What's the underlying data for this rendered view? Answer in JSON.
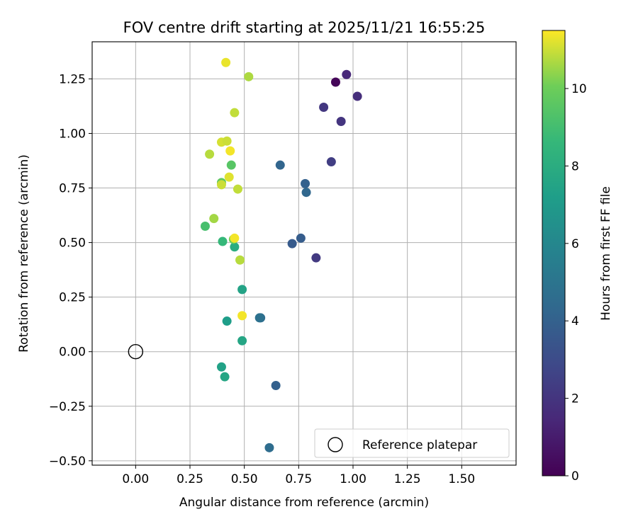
{
  "chart_data": {
    "type": "scatter",
    "title": "FOV centre drift starting at 2025/11/21 16:55:25",
    "xlabel": "Angular distance from reference (arcmin)",
    "ylabel": "Rotation from reference (arcmin)",
    "xlim": [
      -0.2,
      1.75
    ],
    "ylim": [
      -0.52,
      1.42
    ],
    "xticks": [
      0.0,
      0.25,
      0.5,
      0.75,
      1.0,
      1.25,
      1.5
    ],
    "xtick_labels": [
      "0.00",
      "0.25",
      "0.50",
      "0.75",
      "1.00",
      "1.25",
      "1.50"
    ],
    "yticks": [
      -0.5,
      -0.25,
      0.0,
      0.25,
      0.5,
      0.75,
      1.0,
      1.25
    ],
    "ytick_labels": [
      "−0.50",
      "−0.25",
      "0.00",
      "0.25",
      "0.50",
      "0.75",
      "1.00",
      "1.25"
    ],
    "grid": true,
    "colorbar": {
      "label": "Hours from first FF file",
      "min": 0,
      "max": 11.5,
      "ticks": [
        0,
        2,
        4,
        6,
        8,
        10
      ],
      "tick_labels": [
        "0",
        "2",
        "4",
        "6",
        "8",
        "10"
      ],
      "colormap": "viridis"
    },
    "reference": {
      "x": 0.0,
      "y": 0.0,
      "label": "Reference platepar"
    },
    "legend_position": "lower-right",
    "points": [
      {
        "x": 0.92,
        "y": 1.235,
        "hours": 0.2
      },
      {
        "x": 0.97,
        "y": 1.27,
        "hours": 1.5
      },
      {
        "x": 1.02,
        "y": 1.17,
        "hours": 1.7
      },
      {
        "x": 0.865,
        "y": 1.12,
        "hours": 2.1
      },
      {
        "x": 0.945,
        "y": 1.055,
        "hours": 2.0
      },
      {
        "x": 0.9,
        "y": 0.87,
        "hours": 2.4
      },
      {
        "x": 0.83,
        "y": 0.43,
        "hours": 2.2
      },
      {
        "x": 0.665,
        "y": 0.855,
        "hours": 4.2
      },
      {
        "x": 0.78,
        "y": 0.77,
        "hours": 4.0
      },
      {
        "x": 0.785,
        "y": 0.73,
        "hours": 4.3
      },
      {
        "x": 0.76,
        "y": 0.52,
        "hours": 3.8
      },
      {
        "x": 0.72,
        "y": 0.495,
        "hours": 3.7
      },
      {
        "x": 0.575,
        "y": 0.155,
        "hours": 4.6
      },
      {
        "x": 0.57,
        "y": 0.155,
        "hours": 4.8
      },
      {
        "x": 0.645,
        "y": -0.155,
        "hours": 4.0
      },
      {
        "x": 0.615,
        "y": -0.44,
        "hours": 4.6
      },
      {
        "x": 0.49,
        "y": 0.285,
        "hours": 7.5
      },
      {
        "x": 0.42,
        "y": 0.14,
        "hours": 7.2
      },
      {
        "x": 0.49,
        "y": 0.05,
        "hours": 7.6
      },
      {
        "x": 0.395,
        "y": -0.07,
        "hours": 7.4
      },
      {
        "x": 0.41,
        "y": -0.115,
        "hours": 7.6
      },
      {
        "x": 0.455,
        "y": 0.48,
        "hours": 8.0
      },
      {
        "x": 0.4,
        "y": 0.505,
        "hours": 8.6
      },
      {
        "x": 0.32,
        "y": 0.575,
        "hours": 9.1
      },
      {
        "x": 0.44,
        "y": 0.855,
        "hours": 9.5
      },
      {
        "x": 0.395,
        "y": 0.775,
        "hours": 9.7
      },
      {
        "x": 0.36,
        "y": 0.61,
        "hours": 10.6
      },
      {
        "x": 0.45,
        "y": 0.515,
        "hours": 10.0
      },
      {
        "x": 0.455,
        "y": 0.52,
        "hours": 11.4
      },
      {
        "x": 0.48,
        "y": 0.42,
        "hours": 10.8
      },
      {
        "x": 0.49,
        "y": 0.165,
        "hours": 11.4
      },
      {
        "x": 0.415,
        "y": 1.325,
        "hours": 11.3
      },
      {
        "x": 0.52,
        "y": 1.26,
        "hours": 10.7
      },
      {
        "x": 0.455,
        "y": 1.095,
        "hours": 10.9
      },
      {
        "x": 0.395,
        "y": 0.96,
        "hours": 11.1
      },
      {
        "x": 0.42,
        "y": 0.965,
        "hours": 11.0
      },
      {
        "x": 0.435,
        "y": 0.92,
        "hours": 11.4
      },
      {
        "x": 0.34,
        "y": 0.905,
        "hours": 10.8
      },
      {
        "x": 0.43,
        "y": 0.8,
        "hours": 11.2
      },
      {
        "x": 0.395,
        "y": 0.765,
        "hours": 11.0
      },
      {
        "x": 0.47,
        "y": 0.745,
        "hours": 10.9
      }
    ]
  }
}
